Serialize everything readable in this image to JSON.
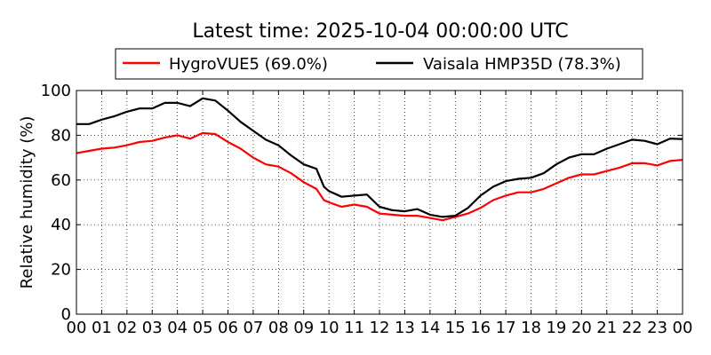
{
  "chart_data": {
    "type": "line",
    "title": "Latest time: 2025-10-04 00:00:00 UTC",
    "xlabel": "",
    "ylabel": "Relative humidity (%)",
    "xlim": [
      0,
      24
    ],
    "ylim": [
      0,
      100
    ],
    "grid": true,
    "legend_position": "top",
    "x_tick_labels": [
      "00",
      "01",
      "02",
      "03",
      "04",
      "05",
      "06",
      "07",
      "08",
      "09",
      "10",
      "11",
      "12",
      "13",
      "14",
      "15",
      "16",
      "17",
      "18",
      "19",
      "20",
      "21",
      "22",
      "23",
      "00"
    ],
    "y_ticks": [
      0,
      20,
      40,
      60,
      80,
      100
    ],
    "series": [
      {
        "name": "HygroVUE5 (69.0%)",
        "color": "#ff0000",
        "x": [
          0,
          0.5,
          1,
          1.5,
          2,
          2.5,
          3,
          3.5,
          4,
          4.5,
          5,
          5.5,
          6,
          6.5,
          7,
          7.5,
          8,
          8.5,
          9,
          9.5,
          9.8,
          10,
          10.5,
          11,
          11.5,
          12,
          12.5,
          13,
          13.5,
          14,
          14.5,
          15,
          15.5,
          16,
          16.5,
          17,
          17.5,
          18,
          18.5,
          19,
          19.5,
          20,
          20.5,
          21,
          21.5,
          22,
          22.5,
          23,
          23.5,
          24
        ],
        "y": [
          72,
          73,
          74,
          74.5,
          75.5,
          77,
          77.5,
          79,
          80,
          78.5,
          81,
          80.5,
          77,
          74,
          70,
          67,
          66,
          63,
          59,
          56,
          51,
          50,
          48,
          49,
          48,
          45,
          44.5,
          44,
          44,
          43,
          42,
          43.5,
          45,
          47.5,
          51,
          53,
          54.5,
          54.5,
          56,
          58.5,
          61,
          62.5,
          62.5,
          64,
          65.5,
          67.5,
          67.5,
          66.5,
          68.5,
          69
        ]
      },
      {
        "name": "Vaisala HMP35D (78.3%)",
        "color": "#000000",
        "x": [
          0,
          0.5,
          1,
          1.5,
          2,
          2.5,
          3,
          3.5,
          4,
          4.5,
          5,
          5.5,
          6,
          6.5,
          7,
          7.5,
          8,
          8.5,
          9,
          9.5,
          9.8,
          10,
          10.5,
          11,
          11.5,
          12,
          12.5,
          13,
          13.5,
          14,
          14.5,
          15,
          15.5,
          16,
          16.5,
          17,
          17.5,
          18,
          18.5,
          19,
          19.5,
          20,
          20.5,
          21,
          21.5,
          22,
          22.5,
          23,
          23.5,
          24
        ],
        "y": [
          85,
          85,
          87,
          88.5,
          90.5,
          92,
          92,
          94.5,
          94.5,
          93,
          96.5,
          95.5,
          91,
          86,
          82,
          78,
          75.5,
          71,
          67,
          65,
          57,
          55,
          52.5,
          53,
          53.5,
          48,
          46.5,
          46,
          47,
          44.5,
          43.5,
          44,
          47.5,
          53,
          57,
          59.5,
          60.5,
          61,
          63,
          67,
          70,
          71.5,
          71.5,
          74,
          76,
          78,
          77.5,
          76,
          78.5,
          78.3
        ]
      }
    ]
  }
}
